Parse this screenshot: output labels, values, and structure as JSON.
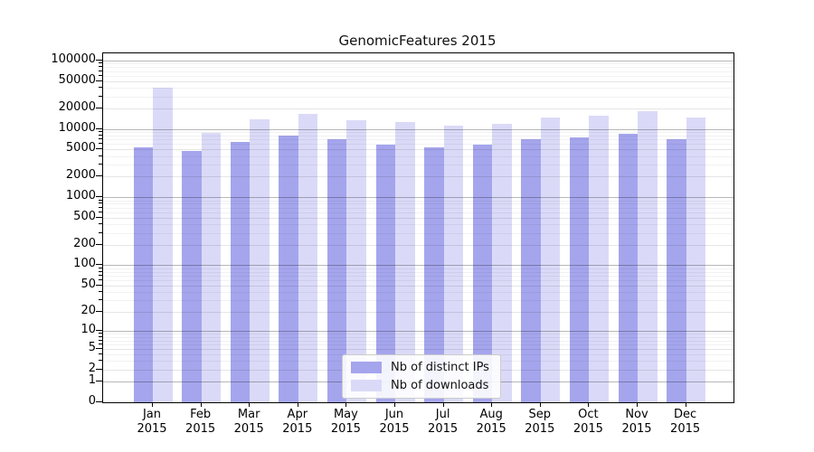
{
  "chart_data": {
    "type": "bar",
    "title": "GenomicFeatures 2015",
    "x_year": "2015",
    "categories": [
      "Jan",
      "Feb",
      "Mar",
      "Apr",
      "May",
      "Jun",
      "Jul",
      "Aug",
      "Sep",
      "Oct",
      "Nov",
      "Dec"
    ],
    "series": [
      {
        "name": "Nb of distinct IPs",
        "color": "#a5a5ed",
        "values": [
          5300,
          4700,
          6400,
          7900,
          7000,
          5900,
          5300,
          5900,
          7100,
          7500,
          8500,
          7100
        ]
      },
      {
        "name": "Nb of downloads",
        "color": "#dadaf8",
        "values": [
          40000,
          8800,
          14000,
          16700,
          13500,
          12500,
          11300,
          12000,
          14900,
          15700,
          18300,
          14500
        ]
      }
    ],
    "yscale": "log1p",
    "yticks": [
      0,
      1,
      2,
      5,
      10,
      20,
      50,
      100,
      200,
      500,
      1000,
      2000,
      5000,
      10000,
      20000,
      50000,
      100000
    ],
    "ylim": [
      0,
      128000
    ],
    "grid": {
      "horizontal": true,
      "minor": true
    },
    "legend_position": "lower-center-inside",
    "axis_color": "#000000"
  }
}
